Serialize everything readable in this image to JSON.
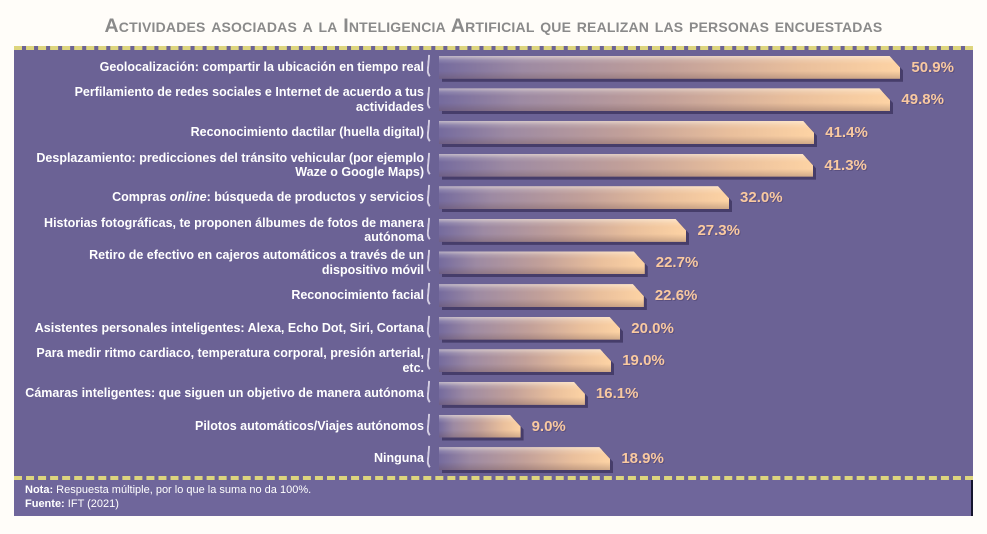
{
  "title": "Actividades asociadas a la Inteligencia Artificial que realizan las personas encuestadas",
  "colors": {
    "title_text": "#8a8a8a",
    "panel_bg": "#6b6295",
    "footer_bg": "#6f669b",
    "dashed_line": "#ddd57e",
    "bar_peach": "#fdd3a4",
    "bar_shadow": "#3a315c",
    "value_text": "#f9c9a0",
    "label_text": "#ffffff"
  },
  "chart_data": {
    "type": "bar",
    "orientation": "horizontal",
    "unit": "%",
    "title": "Actividades asociadas a la Inteligencia Artificial que realizan las personas encuestadas",
    "categories": [
      "Geolocalización: compartir la ubicación en tiempo real",
      "Perfilamiento de redes sociales e Internet de acuerdo a tus actividades",
      "Reconocimiento dactilar (huella digital)",
      "Desplazamiento: predicciones del tránsito vehicular (por ejemplo Waze o Google Maps)",
      "Compras online: búsqueda de productos y servicios",
      "Historias fotográficas, te proponen álbumes de fotos de manera autónoma",
      "Retiro de efectivo en cajeros automáticos a través de un dispositivo móvil",
      "Reconocimiento facial",
      "Asistentes personales inteligentes: Alexa, Echo Dot, Siri, Cortana",
      "Para medir ritmo cardiaco, temperatura corporal, presión arterial, etc.",
      "Cámaras inteligentes: que siguen un objetivo de manera autónoma",
      "Pilotos automáticos/Viajes autónomos",
      "Ninguna"
    ],
    "values": [
      50.9,
      49.8,
      41.4,
      41.3,
      32.0,
      27.3,
      22.7,
      22.6,
      20.0,
      19.0,
      16.1,
      9.0,
      18.9
    ],
    "value_labels": [
      "50.9%",
      "49.8%",
      "41.4%",
      "41.3%",
      "32.0%",
      "27.3%",
      "22.7%",
      "22.6%",
      "20.0%",
      "19.0%",
      "16.1%",
      "9.0%",
      "18.9%"
    ],
    "italic_terms": {
      "4": "online"
    },
    "xlim": [
      0,
      55
    ],
    "grid": false,
    "legend": false
  },
  "footer": {
    "note_label": "Nota:",
    "note_text": " Respuesta múltiple, por lo que la suma no da 100%.",
    "source_label": "Fuente:",
    "source_text": " IFT (2021)"
  }
}
